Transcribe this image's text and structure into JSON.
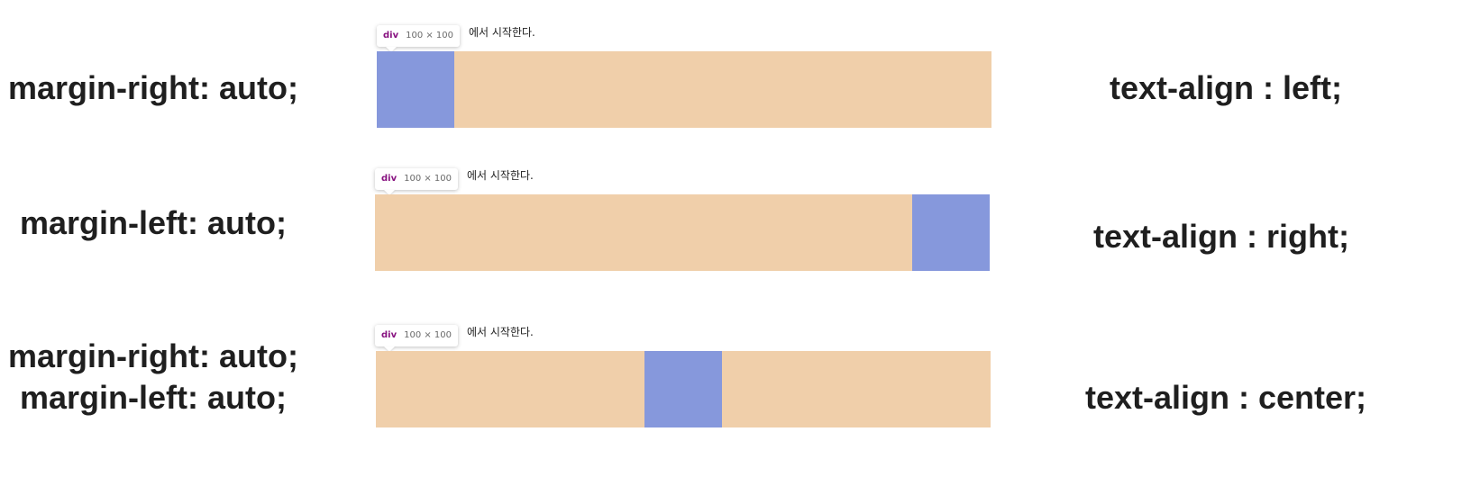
{
  "colors": {
    "container": "#f0cfaa",
    "box": "#8698dc",
    "tooltip_tag": "#881280"
  },
  "rows": [
    {
      "margin_lines": [
        "margin-right: auto;"
      ],
      "text_align": "text-align : left;",
      "caption": "에서 시작한다.",
      "tooltip": {
        "tag": "div",
        "dims": "100 × 100"
      }
    },
    {
      "margin_lines": [
        "margin-left: auto;"
      ],
      "text_align": "text-align : right;",
      "caption": "에서 시작한다.",
      "tooltip": {
        "tag": "div",
        "dims": "100 × 100"
      }
    },
    {
      "margin_lines": [
        "margin-right: auto;",
        "margin-left: auto;"
      ],
      "text_align": "text-align : center;",
      "caption": "에서 시작한다.",
      "tooltip": {
        "tag": "div",
        "dims": "100 × 100"
      }
    }
  ]
}
